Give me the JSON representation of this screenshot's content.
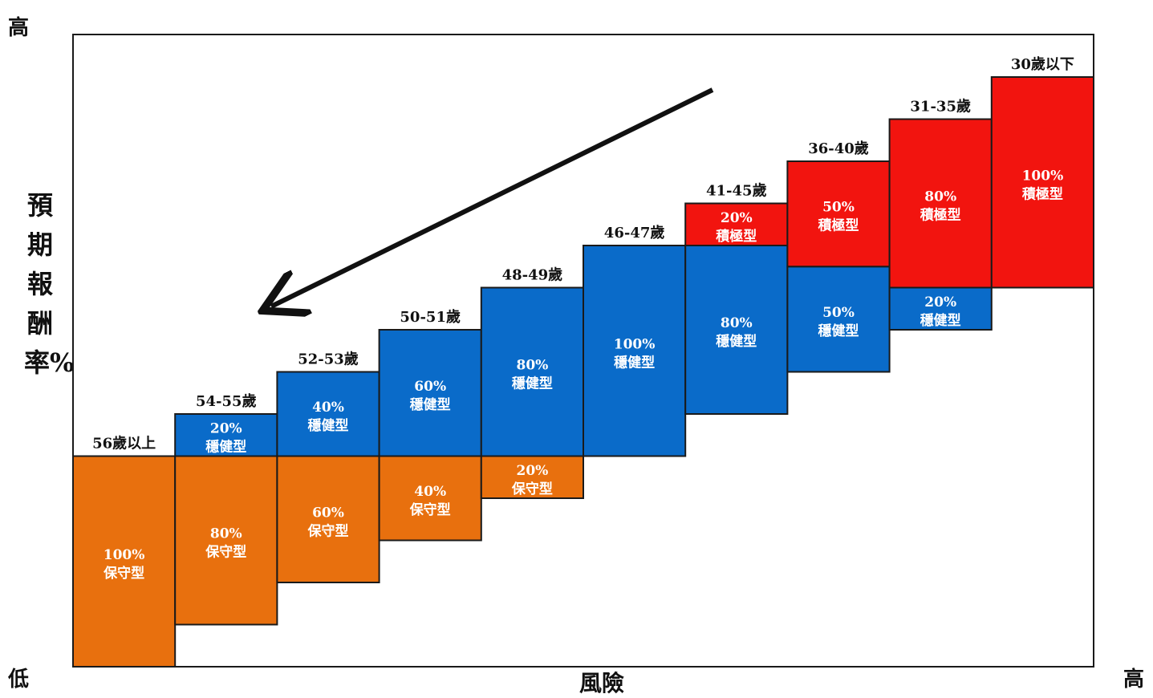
{
  "axis": {
    "y_title": "預期報酬率%",
    "x_title": "風險",
    "y_high": "高",
    "x_low": "低",
    "x_high": "高"
  },
  "colors": {
    "conservative": "#e8700e",
    "balanced": "#0a6bc9",
    "aggressive": "#f2140f",
    "outline": "#1a1a1a"
  },
  "chart_data": {
    "type": "bar",
    "stacked": true,
    "categories": [
      "56歲以上",
      "54-55歲",
      "52-53歲",
      "50-51歲",
      "48-49歲",
      "46-47歲",
      "41-45歲",
      "36-40歲",
      "31-35歲",
      "30歲以下"
    ],
    "series": [
      {
        "name": "保守型",
        "values": [
          100,
          80,
          60,
          40,
          20,
          0,
          0,
          0,
          0,
          0
        ]
      },
      {
        "name": "穩健型",
        "values": [
          0,
          20,
          40,
          60,
          80,
          100,
          80,
          50,
          20,
          0
        ]
      },
      {
        "name": "積極型",
        "values": [
          0,
          0,
          0,
          0,
          0,
          0,
          20,
          50,
          80,
          100
        ]
      }
    ],
    "unit": "%",
    "xlabel": "風險",
    "ylabel": "預期報酬率%",
    "annotation": "arrow pointing from upper-right to lower-left"
  }
}
